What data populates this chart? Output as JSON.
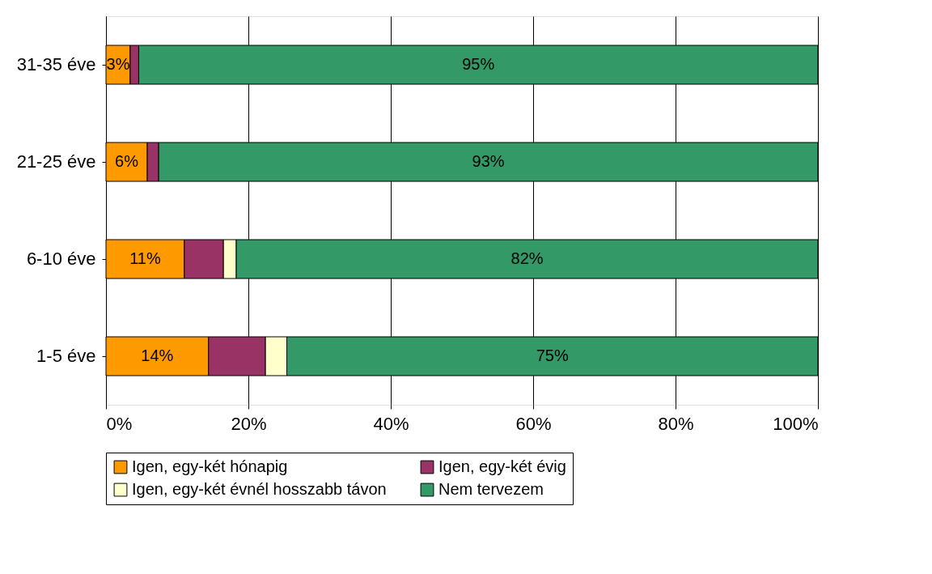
{
  "chart_data": {
    "type": "bar",
    "orientation": "horizontal",
    "stacked": true,
    "categories": [
      "31-35 éve",
      "21-25 éve",
      "6-10 éve",
      "1-5 éve"
    ],
    "series": [
      {
        "name": "Igen, egy-két hónapig",
        "color": "#ff9900",
        "values": [
          3.4,
          5.8,
          11.0,
          14.4
        ],
        "value_labels": [
          "3%",
          "6%",
          "11%",
          "14%"
        ]
      },
      {
        "name": "Igen, egy-két évig",
        "color": "#993366",
        "values": [
          1.2,
          1.6,
          5.5,
          8.0
        ],
        "value_labels": [
          null,
          null,
          null,
          null
        ]
      },
      {
        "name": "Igen, egy-két évnél hosszabb távon",
        "color": "#ffffcc",
        "values": [
          null,
          null,
          1.8,
          3.0
        ],
        "value_labels": [
          null,
          null,
          null,
          null
        ]
      },
      {
        "name": "Nem tervezem",
        "color": "#339966",
        "values": [
          95.4,
          92.6,
          81.7,
          74.6
        ],
        "value_labels": [
          "95%",
          "93%",
          "82%",
          "75%"
        ]
      }
    ],
    "xlim": [
      0,
      100
    ],
    "xticks": [
      {
        "value": 0,
        "label": "0%"
      },
      {
        "value": 20,
        "label": "20%"
      },
      {
        "value": 40,
        "label": "40%"
      },
      {
        "value": 60,
        "label": "60%"
      },
      {
        "value": 80,
        "label": "80%"
      },
      {
        "value": 100,
        "label": "100%"
      }
    ],
    "grid": "x",
    "legend": "bottom"
  }
}
